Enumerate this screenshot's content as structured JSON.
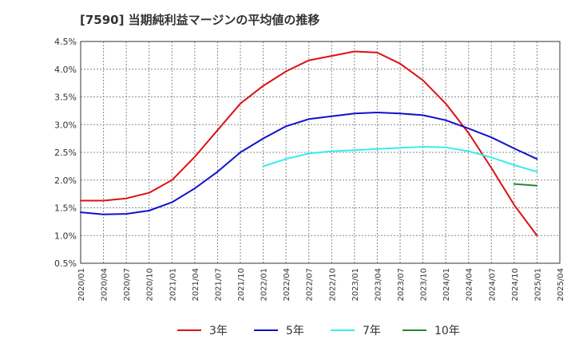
{
  "title": "[7590]  当期純利益マージンの平均値の推移",
  "chart_data": {
    "type": "line",
    "title": "[7590]  当期純利益マージンの平均値の推移",
    "xlabel": "",
    "ylabel": "",
    "ylim": [
      0.5,
      4.5
    ],
    "y_ticks": [
      "0.5%",
      "1.0%",
      "1.5%",
      "2.0%",
      "2.5%",
      "3.0%",
      "3.5%",
      "4.0%",
      "4.5%"
    ],
    "x_ticks": [
      "2020/01",
      "2020/04",
      "2020/07",
      "2020/10",
      "2021/01",
      "2021/04",
      "2021/07",
      "2021/10",
      "2022/01",
      "2022/04",
      "2022/07",
      "2022/10",
      "2023/01",
      "2023/04",
      "2023/07",
      "2023/10",
      "2024/01",
      "2024/04",
      "2024/07",
      "2024/10",
      "2025/01",
      "2025/04"
    ],
    "grid": true,
    "legend_position": "bottom",
    "series": [
      {
        "name": "3年",
        "color": "#dd1111",
        "points": [
          [
            "2020/01",
            1.63
          ],
          [
            "2020/04",
            1.63
          ],
          [
            "2020/07",
            1.67
          ],
          [
            "2020/10",
            1.77
          ],
          [
            "2021/01",
            2.0
          ],
          [
            "2021/04",
            2.42
          ],
          [
            "2021/07",
            2.9
          ],
          [
            "2021/10",
            3.38
          ],
          [
            "2022/01",
            3.7
          ],
          [
            "2022/04",
            3.96
          ],
          [
            "2022/07",
            4.16
          ],
          [
            "2022/10",
            4.24
          ],
          [
            "2023/01",
            4.32
          ],
          [
            "2023/04",
            4.3
          ],
          [
            "2023/07",
            4.1
          ],
          [
            "2023/10",
            3.8
          ],
          [
            "2024/01",
            3.38
          ],
          [
            "2024/04",
            2.85
          ],
          [
            "2024/07",
            2.22
          ],
          [
            "2024/10",
            1.55
          ],
          [
            "2025/01",
            1.0
          ]
        ]
      },
      {
        "name": "5年",
        "color": "#1111cc",
        "points": [
          [
            "2020/01",
            1.42
          ],
          [
            "2020/04",
            1.38
          ],
          [
            "2020/07",
            1.39
          ],
          [
            "2020/10",
            1.45
          ],
          [
            "2021/01",
            1.6
          ],
          [
            "2021/04",
            1.85
          ],
          [
            "2021/07",
            2.15
          ],
          [
            "2021/10",
            2.5
          ],
          [
            "2022/01",
            2.75
          ],
          [
            "2022/04",
            2.97
          ],
          [
            "2022/07",
            3.1
          ],
          [
            "2022/10",
            3.15
          ],
          [
            "2023/01",
            3.2
          ],
          [
            "2023/04",
            3.22
          ],
          [
            "2023/07",
            3.2
          ],
          [
            "2023/10",
            3.17
          ],
          [
            "2024/01",
            3.08
          ],
          [
            "2024/04",
            2.93
          ],
          [
            "2024/07",
            2.77
          ],
          [
            "2024/10",
            2.57
          ],
          [
            "2025/01",
            2.38
          ]
        ]
      },
      {
        "name": "7年",
        "color": "#33eeee",
        "points": [
          [
            "2022/01",
            2.25
          ],
          [
            "2022/04",
            2.38
          ],
          [
            "2022/07",
            2.48
          ],
          [
            "2022/10",
            2.52
          ],
          [
            "2023/01",
            2.54
          ],
          [
            "2023/04",
            2.56
          ],
          [
            "2023/07",
            2.58
          ],
          [
            "2023/10",
            2.6
          ],
          [
            "2024/01",
            2.59
          ],
          [
            "2024/04",
            2.52
          ],
          [
            "2024/07",
            2.41
          ],
          [
            "2024/10",
            2.27
          ],
          [
            "2025/01",
            2.15
          ]
        ]
      },
      {
        "name": "10年",
        "color": "#228833",
        "points": [
          [
            "2024/10",
            1.93
          ],
          [
            "2025/01",
            1.9
          ]
        ]
      }
    ]
  }
}
